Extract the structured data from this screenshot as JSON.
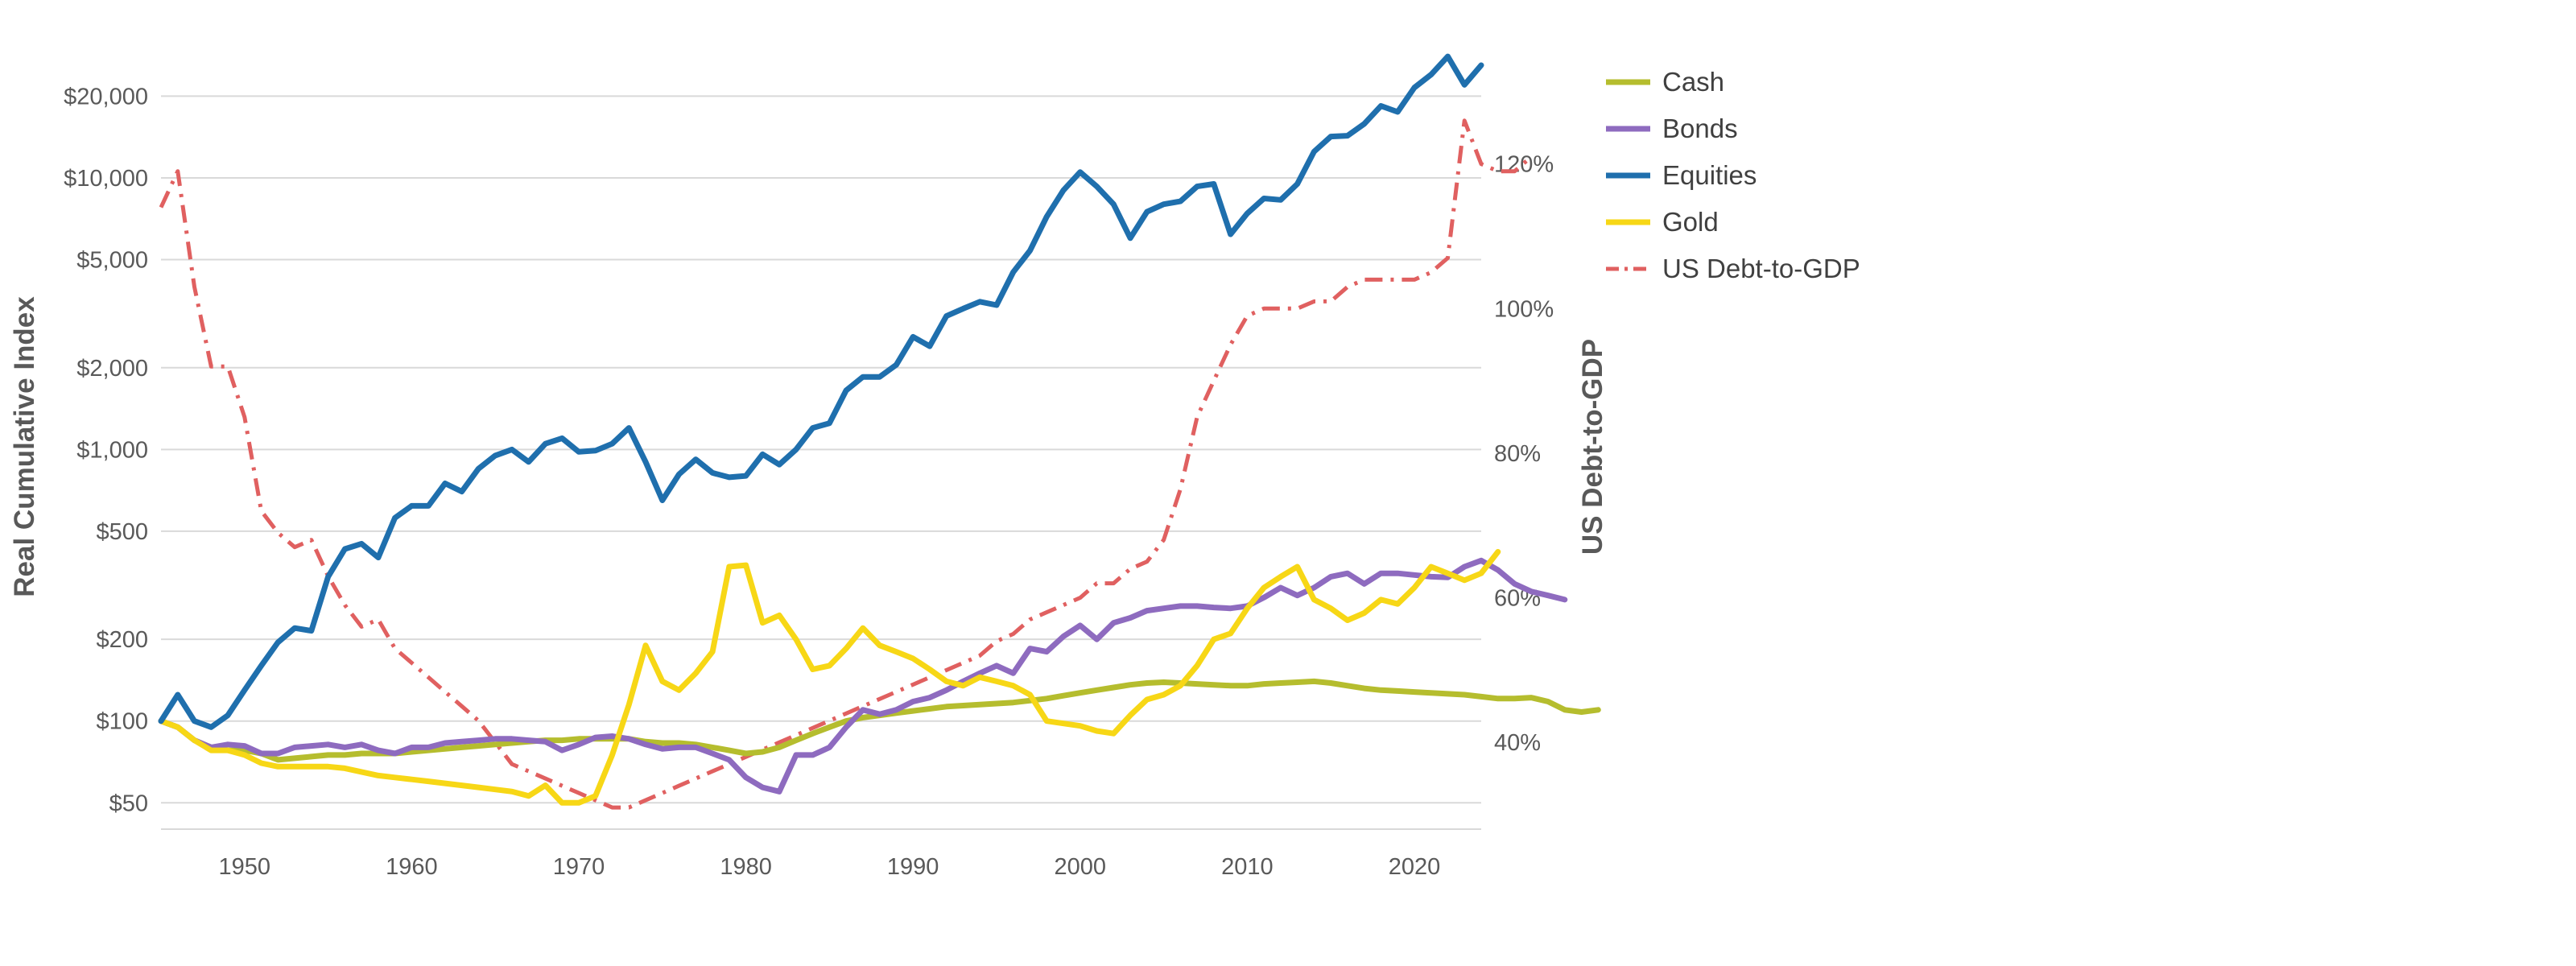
{
  "chart_data": {
    "type": "line",
    "xlim": [
      1945,
      2024
    ],
    "x_ticks": [
      1950,
      1960,
      1970,
      1980,
      1990,
      2000,
      2010,
      2020
    ],
    "left_axis": {
      "label": "Real Cumulative Index",
      "scale": "log",
      "ylim": [
        40,
        30000
      ],
      "ticks": [
        {
          "value": 50,
          "label": "$50"
        },
        {
          "value": 100,
          "label": "$100"
        },
        {
          "value": 200,
          "label": "$200"
        },
        {
          "value": 500,
          "label": "$500"
        },
        {
          "value": 1000,
          "label": "$1,000"
        },
        {
          "value": 2000,
          "label": "$2,000"
        },
        {
          "value": 5000,
          "label": "$5,000"
        },
        {
          "value": 10000,
          "label": "$10,000"
        },
        {
          "value": 20000,
          "label": "$20,000"
        }
      ]
    },
    "right_axis": {
      "label": "US Debt-to-GDP",
      "ylim": [
        28,
        136
      ],
      "ticks": [
        {
          "value": 40,
          "label": "40%"
        },
        {
          "value": 60,
          "label": "60%"
        },
        {
          "value": 80,
          "label": "80%"
        },
        {
          "value": 100,
          "label": "100%"
        },
        {
          "value": 120,
          "label": "120%"
        }
      ]
    },
    "grid": true,
    "legend_position": "top-right",
    "series": [
      {
        "name": "Cash",
        "axis": "left",
        "color": "#b5bd2e",
        "style": "solid",
        "x_start": 1945,
        "values": [
          100,
          95,
          85,
          80,
          78,
          78,
          76,
          72,
          73,
          74,
          75,
          75,
          76,
          76,
          76,
          77,
          78,
          79,
          80,
          81,
          82,
          83,
          84,
          85,
          85,
          86,
          86,
          86,
          86,
          84,
          83,
          83,
          82,
          80,
          78,
          76,
          77,
          80,
          85,
          90,
          95,
          100,
          103,
          105,
          107,
          109,
          111,
          113,
          114,
          115,
          116,
          117,
          119,
          121,
          124,
          127,
          130,
          133,
          136,
          138,
          139,
          138,
          137,
          136,
          135,
          135,
          137,
          138,
          139,
          140,
          138,
          135,
          132,
          130,
          129,
          128,
          127,
          126,
          125,
          123,
          121,
          121,
          122,
          118,
          110,
          108,
          110
        ]
      },
      {
        "name": "Bonds",
        "axis": "left",
        "color": "#8e6bbf",
        "style": "solid",
        "x_start": 1945,
        "values": [
          100,
          95,
          85,
          80,
          82,
          81,
          76,
          76,
          80,
          81,
          82,
          80,
          82,
          78,
          76,
          80,
          80,
          83,
          84,
          85,
          86,
          86,
          85,
          84,
          78,
          82,
          87,
          88,
          86,
          82,
          79,
          80,
          80,
          76,
          72,
          62,
          57,
          55,
          75,
          75,
          80,
          95,
          110,
          106,
          110,
          118,
          122,
          130,
          140,
          150,
          160,
          150,
          185,
          180,
          205,
          225,
          200,
          230,
          240,
          255,
          260,
          265,
          265,
          262,
          260,
          265,
          285,
          310,
          290,
          310,
          340,
          350,
          320,
          350,
          350,
          345,
          340,
          338,
          370,
          390,
          360,
          320,
          300,
          290,
          280
        ]
      },
      {
        "name": "Equities",
        "axis": "left",
        "color": "#1f6fad",
        "style": "solid",
        "x_start": 1945,
        "values": [
          100,
          125,
          100,
          95,
          105,
          130,
          160,
          195,
          220,
          215,
          340,
          430,
          450,
          400,
          560,
          620,
          620,
          750,
          700,
          850,
          950,
          1000,
          900,
          1050,
          1100,
          980,
          990,
          1050,
          1200,
          900,
          650,
          810,
          920,
          820,
          790,
          800,
          960,
          880,
          1000,
          1200,
          1250,
          1650,
          1850,
          1850,
          2050,
          2600,
          2400,
          3100,
          3300,
          3500,
          3400,
          4500,
          5400,
          7200,
          9000,
          10500,
          9300,
          8000,
          6000,
          7500,
          8000,
          8200,
          9300,
          9500,
          6200,
          7400,
          8400,
          8300,
          9500,
          12500,
          14200,
          14300,
          15800,
          18400,
          17500,
          21500,
          24000,
          28000,
          22000,
          26000
        ]
      },
      {
        "name": "Gold",
        "axis": "left",
        "color": "#f7d716",
        "style": "solid",
        "x_start": 1945,
        "values": [
          100,
          95,
          85,
          78,
          78,
          75,
          70,
          68,
          68,
          68,
          68,
          67,
          65,
          63,
          62,
          61,
          60,
          59,
          58,
          57,
          56,
          55,
          53,
          58,
          50,
          50,
          53,
          75,
          115,
          190,
          140,
          130,
          150,
          180,
          370,
          375,
          230,
          245,
          200,
          155,
          160,
          185,
          220,
          190,
          180,
          170,
          155,
          140,
          135,
          145,
          140,
          135,
          125,
          100,
          98,
          96,
          92,
          90,
          105,
          120,
          125,
          135,
          160,
          200,
          210,
          260,
          310,
          340,
          370,
          280,
          260,
          235,
          250,
          280,
          270,
          310,
          370,
          350,
          330,
          350,
          420
        ]
      },
      {
        "name": "US Debt-to-GDP",
        "axis": "right",
        "color": "#e06060",
        "style": "dash-dot",
        "x_start": 1945,
        "values": [
          114,
          119,
          103,
          92,
          92,
          85,
          72,
          69,
          67,
          68,
          63,
          59,
          56,
          57,
          53,
          51,
          49,
          47,
          45,
          43,
          40,
          37,
          36,
          35,
          34,
          33,
          32,
          31,
          31,
          32,
          33,
          34,
          35,
          36,
          37,
          38,
          39,
          40,
          41,
          42,
          43,
          44,
          45,
          46,
          47,
          48,
          49,
          50,
          51,
          52,
          54,
          55,
          57,
          58,
          59,
          60,
          62,
          62,
          64,
          65,
          68,
          75,
          85,
          90,
          95,
          99,
          100,
          100,
          100,
          101,
          101,
          103,
          104,
          104,
          104,
          104,
          105,
          107,
          126,
          120,
          119,
          119,
          121
        ]
      }
    ]
  }
}
